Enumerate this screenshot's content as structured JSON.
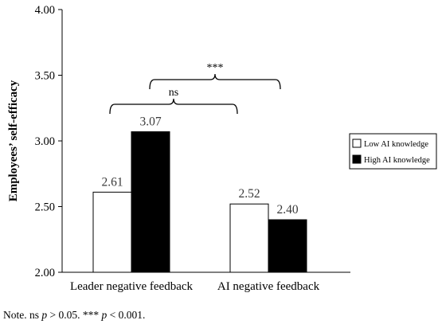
{
  "chart_data": {
    "type": "bar",
    "categories": [
      "Leader negative feedback",
      "AI negative feedback"
    ],
    "series": [
      {
        "name": "Low AI knowledge",
        "values": [
          2.61,
          2.52
        ],
        "color": "#ffffff"
      },
      {
        "name": "High AI knowledge",
        "values": [
          3.07,
          2.4
        ],
        "color": "#000000"
      }
    ],
    "data_labels": [
      [
        "2.61",
        "2.52"
      ],
      [
        "3.07",
        "2.40"
      ]
    ],
    "ylabel": "Employees’ self-efficacy",
    "ylim": [
      2.0,
      4.0
    ],
    "yticks": [
      "2.00",
      "2.50",
      "3.00",
      "3.50",
      "4.00"
    ],
    "legend": {
      "placement": "right",
      "entries": [
        "Low AI knowledge",
        "High AI knowledge"
      ]
    },
    "annotations": [
      {
        "label": "ns",
        "spans": "Leader negative feedback (Low AI knowledge vs High AI knowledge)"
      },
      {
        "label": "***",
        "spans": "High AI knowledge: Leader negative feedback vs AI negative feedback"
      }
    ],
    "grid": false
  },
  "note": {
    "prefix": "Note. ns ",
    "p1": "p",
    "mid": " > 0.05. *** ",
    "p2": "p",
    "suffix": " < 0.001."
  }
}
